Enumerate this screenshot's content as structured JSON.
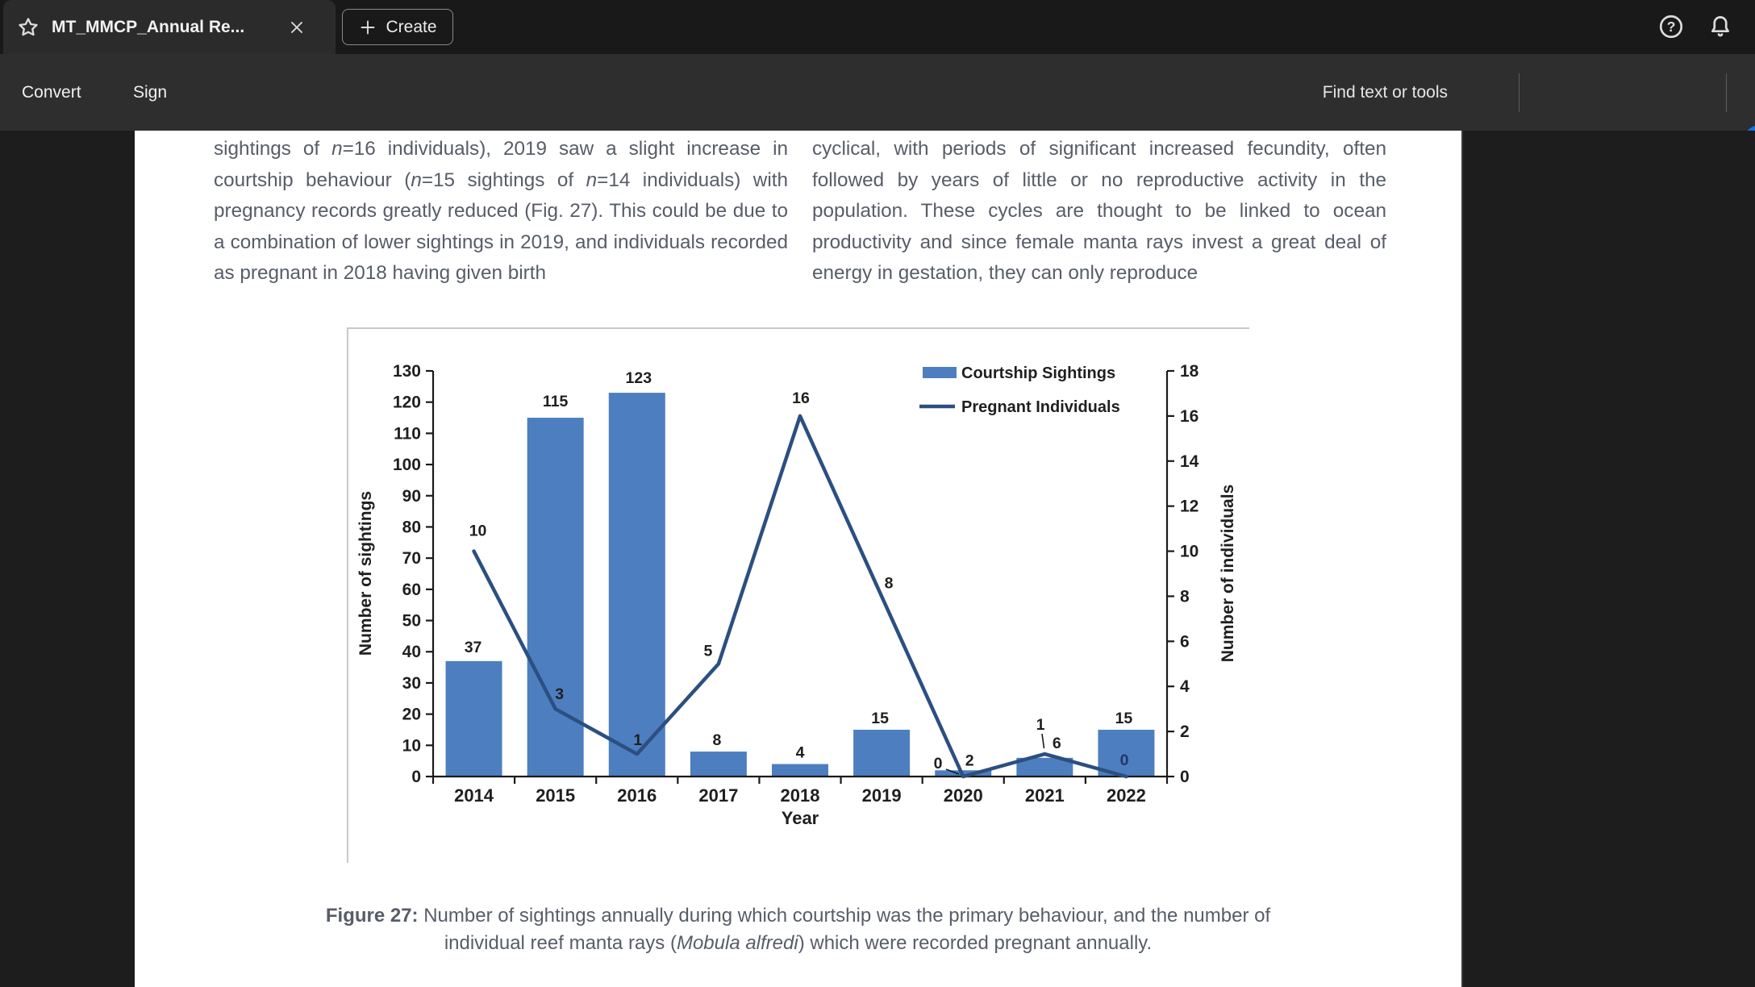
{
  "window": {
    "tab": {
      "title": "MT_MMCP_Annual Re...",
      "icons": [
        "star-icon",
        "close-icon"
      ]
    },
    "create_button": {
      "label": "Create",
      "icon": "plus-icon"
    },
    "top_right_icons": [
      "help-icon",
      "bell-icon"
    ]
  },
  "toolbar": {
    "left_items": [
      {
        "label": "Convert"
      },
      {
        "label": "Sign"
      }
    ],
    "find": {
      "label": "Find text or tools",
      "icon": "search-icon"
    },
    "right_icons": [
      {
        "name": "save-icon",
        "disabled": true
      },
      {
        "name": "cloud-upload-icon"
      },
      {
        "name": "print-icon"
      }
    ],
    "avatar_color": "#1473e6"
  },
  "document": {
    "left_column_segments": [
      {
        "text": "sightings of "
      },
      {
        "text": "n",
        "italic": true
      },
      {
        "text": "=16 individuals), 2019 saw a slight increase in courtship behaviour ("
      },
      {
        "text": "n",
        "italic": true
      },
      {
        "text": "=15 sightings of "
      },
      {
        "text": "n",
        "italic": true
      },
      {
        "text": "=14 individuals) with pregnancy records greatly reduced (Fig. 27). This could be due to a combination of lower sightings in 2019, and individuals recorded as pregnant in 2018 having given birth"
      }
    ],
    "right_column_segments": [
      {
        "text": "cyclical, with periods of significant increased fecundity, often followed by years of little or no reproductive activity in the population. These cycles are thought to be linked to ocean productivity and since female manta rays invest a great deal of energy in gestation, they can only reproduce"
      }
    ],
    "caption_line1_segments": [
      {
        "text": "Figure 27: ",
        "bold": true
      },
      {
        "text": "Number of sightings annually during which courtship was the primary behaviour, and the number of"
      }
    ],
    "caption_line2_segments": [
      {
        "text": "individual reef manta rays ("
      },
      {
        "text": "Mobula alfredi",
        "italic": true
      },
      {
        "text": ") which were recorded pregnant annually."
      }
    ]
  },
  "chart_data": {
    "type": "bar",
    "title": "",
    "categories": [
      "2014",
      "2015",
      "2016",
      "2017",
      "2018",
      "2019",
      "2020",
      "2021",
      "2022"
    ],
    "series": [
      {
        "name": "Courtship Sightings",
        "kind": "bar",
        "axis": "left",
        "values": [
          37,
          115,
          123,
          8,
          4,
          15,
          2,
          6,
          15
        ]
      },
      {
        "name": "Pregnant Individuals",
        "kind": "line",
        "axis": "right",
        "values": [
          10,
          3,
          1,
          5,
          16,
          8,
          0,
          1,
          0
        ]
      }
    ],
    "xlabel": "Year",
    "ylabel_left": "Number of sightings",
    "ylabel_right": "Number of individuals",
    "ylim_left": [
      0,
      130
    ],
    "ytick_step_left": 10,
    "ylim_right": [
      0,
      18
    ],
    "ytick_step_right": 2,
    "grid": false,
    "legend_position": "inside-top-right",
    "bar_color": "#4d7ec0",
    "line_color": "#2b4f80"
  }
}
